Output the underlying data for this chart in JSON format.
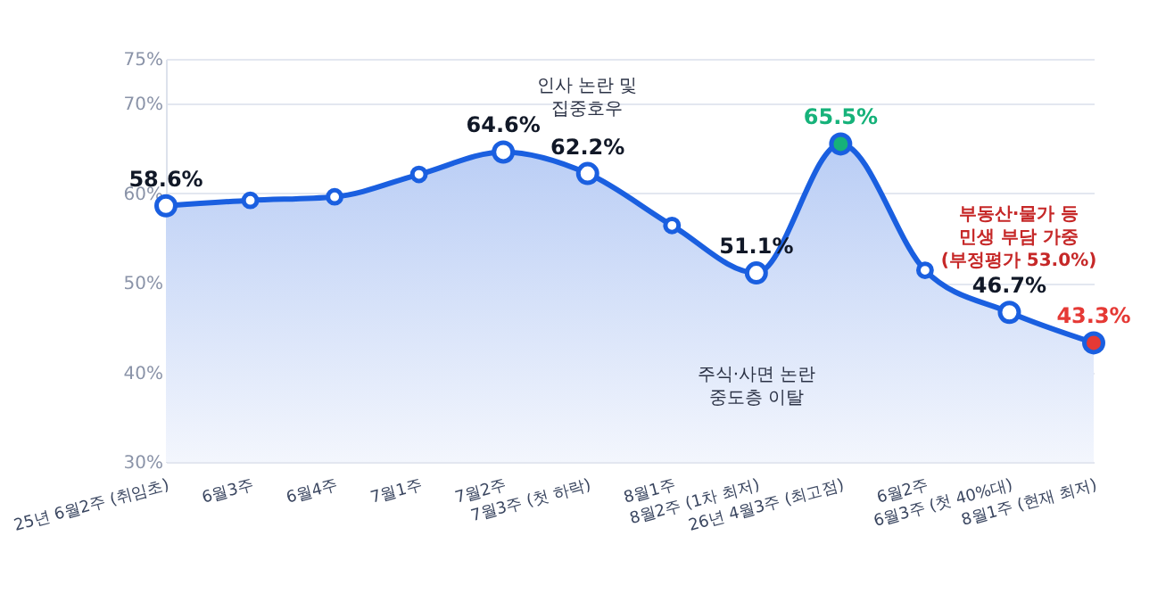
{
  "chart_data": {
    "type": "area",
    "categories": [
      "25년 6월2주 (취임초)",
      "6월3주",
      "6월4주",
      "7월1주",
      "7월2주",
      "7월3주 (첫 하락)",
      "8월1주",
      "8월2주 (1차 최저)",
      "26년 4월3주 (최고점)",
      "6월2주",
      "6월3주 (첫 40%대)",
      "8월1주 (현재 최저)"
    ],
    "series": [
      {
        "color": "#1a5fe0",
        "values": [
          58.6,
          59.2,
          59.6,
          62.1,
          64.6,
          62.2,
          56.4,
          51.1,
          65.5,
          51.4,
          46.7,
          43.3
        ],
        "value_labels": [
          "58.6%",
          null,
          null,
          null,
          "64.6%",
          "62.2%",
          null,
          "51.1%",
          "65.5%",
          null,
          "46.7%",
          "43.3%"
        ],
        "colors": [
          "#ffffff",
          "#ffffff",
          "#ffffff",
          "#ffffff",
          "#ffffff",
          "#ffffff",
          "#ffffff",
          "#ffffff",
          "#16b27a",
          "#ffffff",
          "#ffffff",
          "#e53935"
        ]
      }
    ],
    "ylim": [
      30,
      75
    ],
    "yticks": [
      {
        "value": 30,
        "label": "30%"
      },
      {
        "value": 40,
        "label": "40%"
      },
      {
        "value": 50,
        "label": "50%"
      },
      {
        "value": 60,
        "label": "60%"
      },
      {
        "value": 70,
        "label": "70%"
      },
      {
        "value": 75,
        "label": "75%"
      }
    ],
    "grid": "y",
    "marker": "circle",
    "line_style": "solid",
    "annotations": [
      "인사 논란 및\n집중호우",
      "주식·사면 논란\n중도층 이탈",
      "부동산·물가 등\n민생 부담 가중\n(부정평가 53.0%)"
    ]
  }
}
